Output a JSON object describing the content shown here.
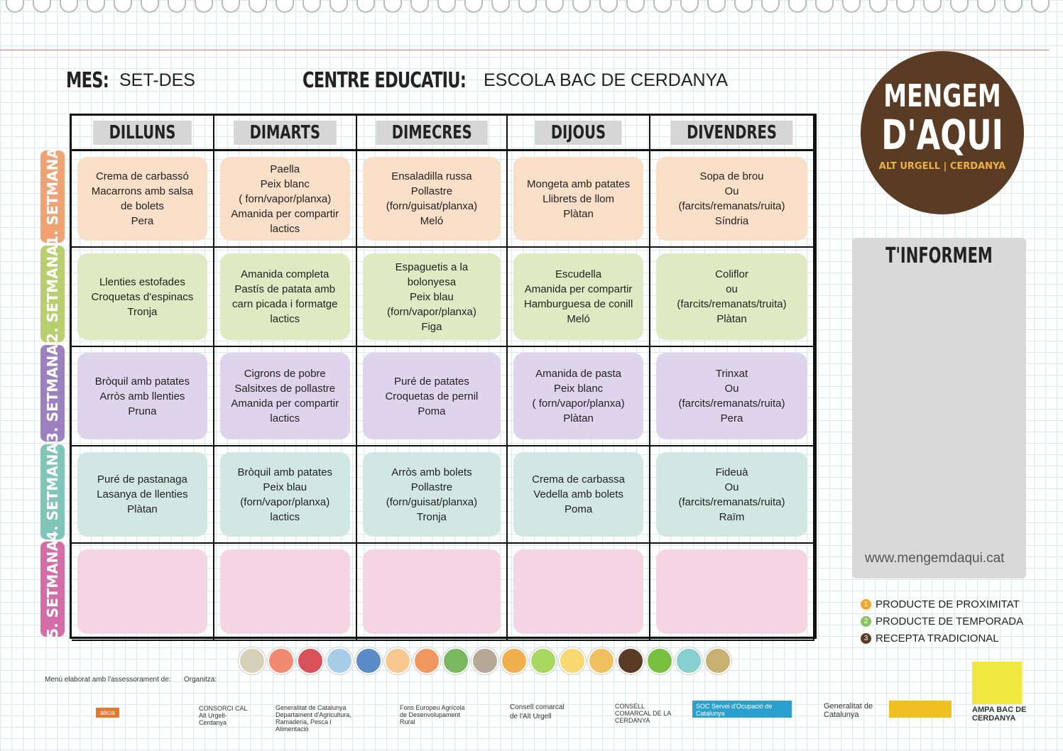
{
  "header": {
    "month_label": "MES:",
    "month": "SET-DES",
    "school_label": "CENTRE EDUCATIU:",
    "school": "ESCOLA BAC DE CERDANYA"
  },
  "days": [
    "DILLUNS",
    "DIMARTS",
    "DIMECRES",
    "DIJOUS",
    "DIVENDRES"
  ],
  "weeks": [
    {
      "label": "1. SETMANA",
      "color": "#f0a272",
      "bg": "#f9dec8",
      "cells": [
        [
          "Crema de carbassó",
          "Macarrons amb salsa",
          "de bolets",
          "Pera"
        ],
        [
          "Paella",
          "Peix blanc",
          "( forn/vapor/planxa)",
          "Amanida per compartir",
          "lactics"
        ],
        [
          "Ensaladilla russa",
          "Pollastre",
          "(forn/guisat/planxa)",
          "Meló"
        ],
        [
          "Mongeta amb patates",
          "Llibrets de llom",
          "Plàtan"
        ],
        [
          "Sopa de brou",
          "Ou",
          "(farcits/remanats/ruita)",
          "Síndria"
        ]
      ]
    },
    {
      "label": "2. SETMANA",
      "color": "#b7cf6c",
      "bg": "#dfeac2",
      "cells": [
        [
          "Llenties estofades",
          "Croquetas d'espinacs",
          "Tronja"
        ],
        [
          "Amanida completa",
          "Pastís de patata amb",
          "carn picada i formatge",
          "lactics"
        ],
        [
          "Espaguetis a la",
          "bolonyesa",
          "Peix blau",
          "(forn/vapor/planxa)",
          "Figa"
        ],
        [
          "Escudella",
          "Amanida per compartir",
          "Hamburguesa de conill",
          "Meló"
        ],
        [
          "Coliflor",
          "ou",
          "(farcits/remanats/truita)",
          "Plàtan"
        ]
      ]
    },
    {
      "label": "3. SETMANA",
      "color": "#9c80bf",
      "bg": "#ded5ec",
      "cells": [
        [
          "Bròquil amb patates",
          "Arròs amb llenties",
          "Pruna"
        ],
        [
          "Cigrons de pobre",
          "Salsitxes de pollastre",
          "Amanida per compartir",
          "lactics"
        ],
        [
          "Puré de patates",
          "Croquetas de pernil",
          "Poma"
        ],
        [
          "Amanida de pasta",
          "Peix blanc",
          "( forn/vapor/planxa)",
          "Plàtan"
        ],
        [
          "Trinxat",
          "Ou",
          "(farcits/remanats/ruita)",
          "Pera"
        ]
      ]
    },
    {
      "label": "4. SETMANA",
      "color": "#80c5b9",
      "bg": "#d1e7e1",
      "cells": [
        [
          "Puré de pastanaga",
          "Lasanya de llenties",
          "Plàtan"
        ],
        [
          "Bròquil amb patates",
          "Peix blau",
          "(forn/vapor/planxa)",
          "lactics"
        ],
        [
          "Arròs amb bolets",
          "Pollastre",
          "(forn/guisat/planxa)",
          "Tronja"
        ],
        [
          "Crema de carbassa",
          "Vedella amb bolets",
          "Poma"
        ],
        [
          "Fideuà",
          "Ou",
          "(farcits/remanats/ruita)",
          "Raïm"
        ]
      ]
    },
    {
      "label": "5. SETMANA",
      "color": "#d56ca7",
      "bg": "#f4d5e1",
      "cells": [
        [],
        [],
        [],
        [],
        []
      ]
    }
  ],
  "logo": {
    "line1": "MENGEM",
    "line2": "D'AQUI",
    "sub": "ALT URGELL | CERDANYA"
  },
  "panel": {
    "title": "T'INFORMEM",
    "url": "www.mengemdaqui.cat"
  },
  "legend": [
    {
      "num": "1",
      "text": "PRODUCTE DE PROXIMITAT",
      "color": "#f0a830"
    },
    {
      "num": "2",
      "text": "PRODUCTE DE TEMPORADA",
      "color": "#8cc060"
    },
    {
      "num": "3",
      "text": "RECEPTA TRADICIONAL",
      "color": "#5a3c25"
    }
  ],
  "icon_colors": [
    "#d8d0b8",
    "#f08a70",
    "#d9525a",
    "#a8cde8",
    "#5b8cc8",
    "#f8c890",
    "#f09860",
    "#7ab860",
    "#b8a898",
    "#f0b050",
    "#a8d860",
    "#f8d870",
    "#f0c060",
    "#5a3c25",
    "#78c040",
    "#88d0d0",
    "#c8b070"
  ],
  "footer": {
    "advice": "Menú elaborat amb l'assessorament de:",
    "organizer": "Organitza:",
    "sponsors": [
      "alicia",
      "CONSORCI CAL Alt Urgell-Cerdanya",
      "Generalitat de Catalunya Departament d'Agricultura, Ramaderia, Pesca i Alimentació",
      "Fons Europeu Agrícola de Desenvolupament Rural",
      "Consell comarcal de l'Alt Urgell",
      "CONSELL COMARCAL DE LA CERDANYA",
      "SOC Servei d'Ocupació de Catalunya",
      "Generalitat de Catalunya",
      "AMPA BAC DE CERDANYA"
    ]
  }
}
